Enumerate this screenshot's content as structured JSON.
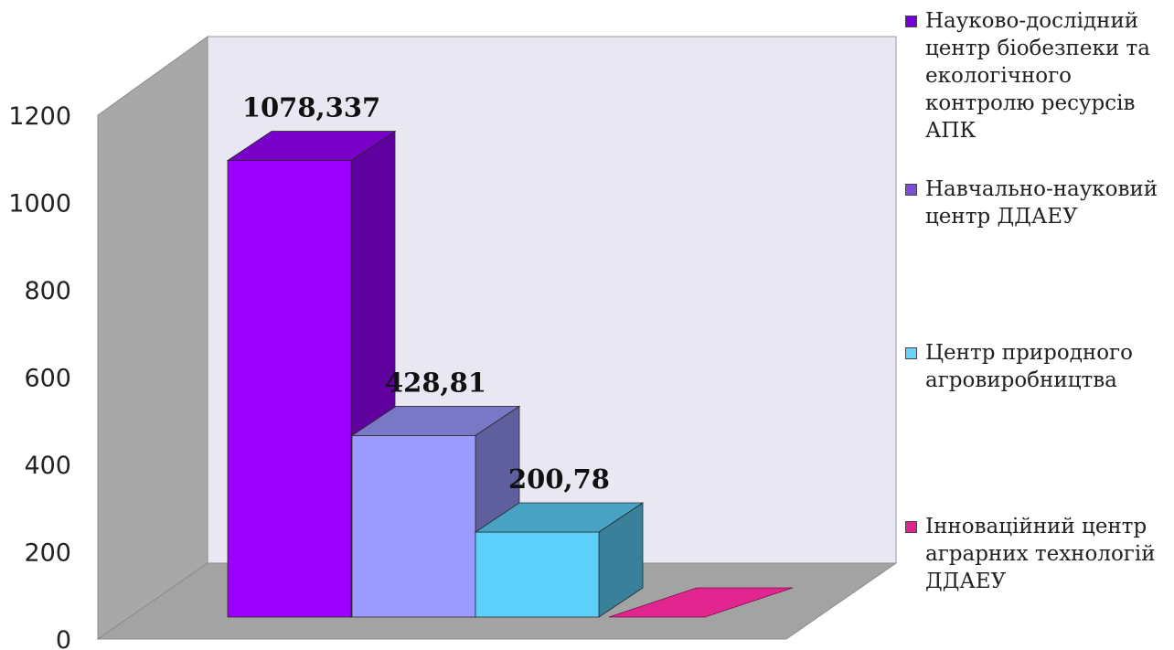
{
  "chart_data": {
    "type": "bar",
    "categories": [
      "Науково-дослідний центр біобезпеки та екологічного контролю ресурсів АПК",
      "Навчально-науковий центр ДДАЕУ",
      "Центр природного агровиробництва",
      "Інноваційний центр аграрних технологій ДДАЕУ"
    ],
    "values": [
      1078.337,
      428.81,
      200.78,
      0
    ],
    "value_labels": [
      "1078,337",
      "428,81",
      "200,78",
      ""
    ],
    "colors": [
      "#9b00ff",
      "#9a9aff",
      "#5cd0fa",
      "#e0258f"
    ],
    "yticks": [
      "0",
      "200",
      "400",
      "600",
      "800",
      "1000",
      "1200"
    ],
    "ylim": [
      0,
      1200
    ],
    "three_d": true,
    "grid": false,
    "legend_position": "right"
  },
  "legend": {
    "items": [
      {
        "lines": [
          "Науково-дослідний",
          "центр біобезпеки та",
          "екологічного",
          "контролю ресурсів",
          "АПК"
        ],
        "color": "#7400d8"
      },
      {
        "lines": [
          "Навчально-науковий",
          "центр ДДАЕУ"
        ],
        "color": "#7c4fd8"
      },
      {
        "lines": [
          "Центр природного",
          "агровиробництва"
        ],
        "color": "#6dd3fb"
      },
      {
        "lines": [
          "Інноваційний центр",
          "аграрних технологій",
          "ДДАЕУ"
        ],
        "color": "#e0258f"
      }
    ]
  }
}
